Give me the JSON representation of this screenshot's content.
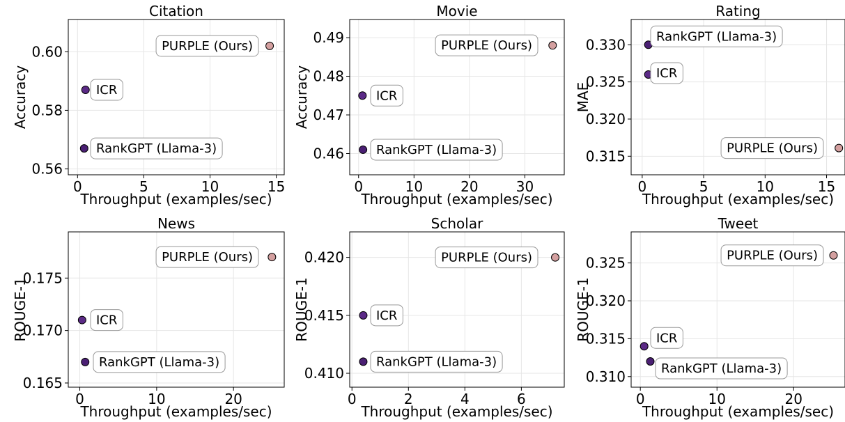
{
  "chart_data": [
    {
      "type": "scatter",
      "title": "Citation",
      "xlabel": "Throughput (examples/sec)",
      "ylabel": "Accuracy",
      "xlim": [
        -0.7,
        15.6
      ],
      "ylim": [
        0.558,
        0.611
      ],
      "xticks": [
        0,
        5,
        10,
        15
      ],
      "yticks": [
        0.56,
        0.58,
        0.6
      ],
      "ytick_labels": [
        "0.56",
        "0.58",
        "0.60"
      ],
      "grid": true,
      "points": [
        {
          "label": "PURPLE (Ours)",
          "x": 14.5,
          "y": 0.602,
          "color": "#d4a0a0"
        },
        {
          "label": "ICR",
          "x": 0.6,
          "y": 0.587,
          "color": "#5b2a86"
        },
        {
          "label": "RankGPT (Llama-3)",
          "x": 0.5,
          "y": 0.567,
          "color": "#4a1f73"
        }
      ]
    },
    {
      "type": "scatter",
      "title": "Movie",
      "xlabel": "Throughput (examples/sec)",
      "ylabel": "Accuracy",
      "xlim": [
        -1.6,
        37.1
      ],
      "ylim": [
        0.4545,
        0.4947
      ],
      "xticks": [
        0,
        10,
        20,
        30
      ],
      "yticks": [
        0.46,
        0.47,
        0.48,
        0.49
      ],
      "ytick_labels": [
        "0.46",
        "0.47",
        "0.48",
        "0.49"
      ],
      "grid": true,
      "points": [
        {
          "label": "PURPLE (Ours)",
          "x": 35.0,
          "y": 0.488,
          "color": "#d4a0a0"
        },
        {
          "label": "ICR",
          "x": 0.7,
          "y": 0.475,
          "color": "#5b2a86"
        },
        {
          "label": "RankGPT (Llama-3)",
          "x": 0.8,
          "y": 0.461,
          "color": "#4a1f73"
        }
      ]
    },
    {
      "type": "scatter",
      "title": "Rating",
      "xlabel": "Throughput (examples/sec)",
      "ylabel": "MAE",
      "xlim": [
        -0.9,
        16.5
      ],
      "ylim": [
        0.3125,
        0.3334
      ],
      "xticks": [
        0,
        5,
        10,
        15
      ],
      "yticks": [
        0.315,
        0.32,
        0.325,
        0.33
      ],
      "ytick_labels": [
        "0.315",
        "0.320",
        "0.325",
        "0.330"
      ],
      "grid": true,
      "points": [
        {
          "label": "RankGPT (Llama-3)",
          "x": 0.5,
          "y": 0.33,
          "color": "#4a1f73"
        },
        {
          "label": "ICR",
          "x": 0.5,
          "y": 0.326,
          "color": "#5b2a86"
        },
        {
          "label": "PURPLE (Ours)",
          "x": 16.0,
          "y": 0.3161,
          "color": "#d4a0a0"
        }
      ]
    },
    {
      "type": "scatter",
      "title": "News",
      "xlabel": "Throughput (examples/sec)",
      "ylabel": "ROUGE-1",
      "xlim": [
        -1.5,
        26.6
      ],
      "ylim": [
        0.1646,
        0.1794
      ],
      "xticks": [
        0,
        10,
        20
      ],
      "yticks": [
        0.165,
        0.17,
        0.175
      ],
      "ytick_labels": [
        "0.165",
        "0.170",
        "0.175"
      ],
      "grid": true,
      "points": [
        {
          "label": "PURPLE (Ours)",
          "x": 25.0,
          "y": 0.177,
          "color": "#d4a0a0"
        },
        {
          "label": "ICR",
          "x": 0.3,
          "y": 0.171,
          "color": "#5b2a86"
        },
        {
          "label": "RankGPT (Llama-3)",
          "x": 0.7,
          "y": 0.167,
          "color": "#4a1f73"
        }
      ]
    },
    {
      "type": "scatter",
      "title": "Scholar",
      "xlabel": "Throughput (examples/sec)",
      "ylabel": "ROUGE-1",
      "xlim": [
        -0.08,
        7.52
      ],
      "ylim": [
        0.4088,
        0.4222
      ],
      "xticks": [
        0,
        2,
        4,
        6
      ],
      "yticks": [
        0.41,
        0.415,
        0.42
      ],
      "ytick_labels": [
        "0.410",
        "0.415",
        "0.420"
      ],
      "grid": true,
      "points": [
        {
          "label": "PURPLE (Ours)",
          "x": 7.2,
          "y": 0.42,
          "color": "#d4a0a0"
        },
        {
          "label": "ICR",
          "x": 0.4,
          "y": 0.415,
          "color": "#5b2a86"
        },
        {
          "label": "RankGPT (Llama-3)",
          "x": 0.4,
          "y": 0.411,
          "color": "#4a1f73"
        }
      ]
    },
    {
      "type": "scatter",
      "title": "Tweet",
      "xlabel": "Throughput (examples/sec)",
      "ylabel": "ROUGE-1",
      "xlim": [
        -1.2,
        26.7
      ],
      "ylim": [
        0.3086,
        0.3291
      ],
      "xticks": [
        0,
        10,
        20
      ],
      "yticks": [
        0.31,
        0.315,
        0.32,
        0.325
      ],
      "ytick_labels": [
        "0.310",
        "0.315",
        "0.320",
        "0.325"
      ],
      "grid": true,
      "points": [
        {
          "label": "PURPLE (Ours)",
          "x": 25.2,
          "y": 0.326,
          "color": "#d4a0a0"
        },
        {
          "label": "ICR",
          "x": 0.5,
          "y": 0.314,
          "color": "#5b2a86"
        },
        {
          "label": "RankGPT (Llama-3)",
          "x": 1.3,
          "y": 0.312,
          "color": "#4a1f73"
        }
      ]
    }
  ]
}
